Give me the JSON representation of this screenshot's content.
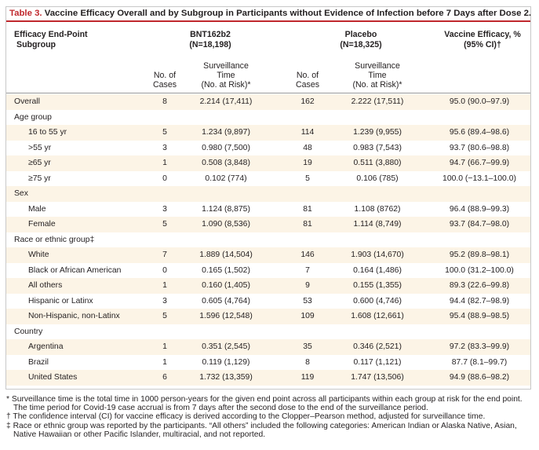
{
  "table": {
    "label": "Table 3.",
    "title": " Vaccine Efficacy Overall and by Subgroup in Participants without Evidence of Infection before 7 Days after Dose 2."
  },
  "header": {
    "col0_line1": "Efficacy End-Point",
    "col0_line2": "Subgroup",
    "vaccine_name": "BNT162b2",
    "vaccine_n": "(N=18,198)",
    "placebo_name": "Placebo",
    "placebo_n": "(N=18,325)",
    "efficacy_line1": "Vaccine Efficacy, %",
    "efficacy_line2": "(95% CI)†",
    "cases_line1": "No. of",
    "cases_line2": "Cases",
    "surv_line1": "Surveillance",
    "surv_line2": "Time",
    "surv_line3": "(No. at Risk)*"
  },
  "rows": [
    {
      "label": "Overall",
      "type": "data",
      "vac_cases": "8",
      "vac_time": "2.214 (17,411)",
      "pla_cases": "162",
      "pla_time": "2.222 (17,511)",
      "efficacy": "95.0 (90.0–97.9)"
    },
    {
      "label": "Age group",
      "type": "group",
      "vac_cases": "",
      "vac_time": "",
      "pla_cases": "",
      "pla_time": "",
      "efficacy": ""
    },
    {
      "label": "16 to 55 yr",
      "type": "sub",
      "vac_cases": "5",
      "vac_time": "1.234 (9,897)",
      "pla_cases": "114",
      "pla_time": "1.239 (9,955)",
      "efficacy": "95.6 (89.4–98.6)"
    },
    {
      "label": ">55 yr",
      "type": "sub",
      "vac_cases": "3",
      "vac_time": "0.980 (7,500)",
      "pla_cases": "48",
      "pla_time": "0.983 (7,543)",
      "efficacy": "93.7 (80.6–98.8)"
    },
    {
      "label": "≥65 yr",
      "type": "sub",
      "vac_cases": "1",
      "vac_time": "0.508 (3,848)",
      "pla_cases": "19",
      "pla_time": "0.511 (3,880)",
      "efficacy": "94.7 (66.7–99.9)"
    },
    {
      "label": "≥75 yr",
      "type": "sub",
      "vac_cases": "0",
      "vac_time": "0.102 (774)",
      "pla_cases": "5",
      "pla_time": "0.106 (785)",
      "efficacy": "100.0 (−13.1–100.0)"
    },
    {
      "label": "Sex",
      "type": "group",
      "vac_cases": "",
      "vac_time": "",
      "pla_cases": "",
      "pla_time": "",
      "efficacy": ""
    },
    {
      "label": "Male",
      "type": "sub",
      "vac_cases": "3",
      "vac_time": "1.124 (8,875)",
      "pla_cases": "81",
      "pla_time": "1.108 (8762)",
      "efficacy": "96.4 (88.9–99.3)"
    },
    {
      "label": "Female",
      "type": "sub",
      "vac_cases": "5",
      "vac_time": "1.090 (8,536)",
      "pla_cases": "81",
      "pla_time": "1.114 (8,749)",
      "efficacy": "93.7 (84.7–98.0)"
    },
    {
      "label": "Race or ethnic group‡",
      "type": "group",
      "vac_cases": "",
      "vac_time": "",
      "pla_cases": "",
      "pla_time": "",
      "efficacy": ""
    },
    {
      "label": "White",
      "type": "sub",
      "vac_cases": "7",
      "vac_time": "1.889 (14,504)",
      "pla_cases": "146",
      "pla_time": "1.903 (14,670)",
      "efficacy": "95.2 (89.8–98.1)"
    },
    {
      "label": "Black or African American",
      "type": "sub",
      "vac_cases": "0",
      "vac_time": "0.165 (1,502)",
      "pla_cases": "7",
      "pla_time": "0.164 (1,486)",
      "efficacy": "100.0 (31.2–100.0)"
    },
    {
      "label": "All others",
      "type": "sub",
      "vac_cases": "1",
      "vac_time": "0.160 (1,405)",
      "pla_cases": "9",
      "pla_time": "0.155 (1,355)",
      "efficacy": "89.3 (22.6–99.8)"
    },
    {
      "label": "Hispanic or Latinx",
      "type": "sub",
      "vac_cases": "3",
      "vac_time": "0.605 (4,764)",
      "pla_cases": "53",
      "pla_time": "0.600 (4,746)",
      "efficacy": "94.4 (82.7–98.9)"
    },
    {
      "label": "Non-Hispanic, non-Latinx",
      "type": "sub",
      "vac_cases": "5",
      "vac_time": "1.596 (12,548)",
      "pla_cases": "109",
      "pla_time": "1.608 (12,661)",
      "efficacy": "95.4 (88.9–98.5)"
    },
    {
      "label": "Country",
      "type": "group",
      "vac_cases": "",
      "vac_time": "",
      "pla_cases": "",
      "pla_time": "",
      "efficacy": ""
    },
    {
      "label": "Argentina",
      "type": "sub",
      "vac_cases": "1",
      "vac_time": "0.351 (2,545)",
      "pla_cases": "35",
      "pla_time": "0.346 (2,521)",
      "efficacy": "97.2 (83.3–99.9)"
    },
    {
      "label": "Brazil",
      "type": "sub",
      "vac_cases": "1",
      "vac_time": "0.119 (1,129)",
      "pla_cases": "8",
      "pla_time": "0.117 (1,121)",
      "efficacy": "87.7 (8.1–99.7)"
    },
    {
      "label": "United States",
      "type": "sub",
      "vac_cases": "6",
      "vac_time": "1.732 (13,359)",
      "pla_cases": "119",
      "pla_time": "1.747 (13,506)",
      "efficacy": "94.9 (88.6–98.2)"
    }
  ],
  "footnotes": [
    "* Surveillance time is the total time in 1000 person-years for the given end point across all participants within each group at risk for the end point. The time period for Covid-19 case accrual is from 7 days after the second dose to the end of the surveillance period.",
    "† The confidence interval (CI) for vaccine efficacy is derived according to the Clopper–Pearson method, adjusted for surveillance time.",
    "‡ Race or ethnic group was reported by the participants. “All others” included the following categories: American Indian or Alaska Native, Asian, Native Hawaiian or other Pacific Islander, multiracial, and not reported."
  ],
  "colors": {
    "accent": "#c0282d",
    "row_shade": "#fcf4e6",
    "text": "#231f20"
  }
}
